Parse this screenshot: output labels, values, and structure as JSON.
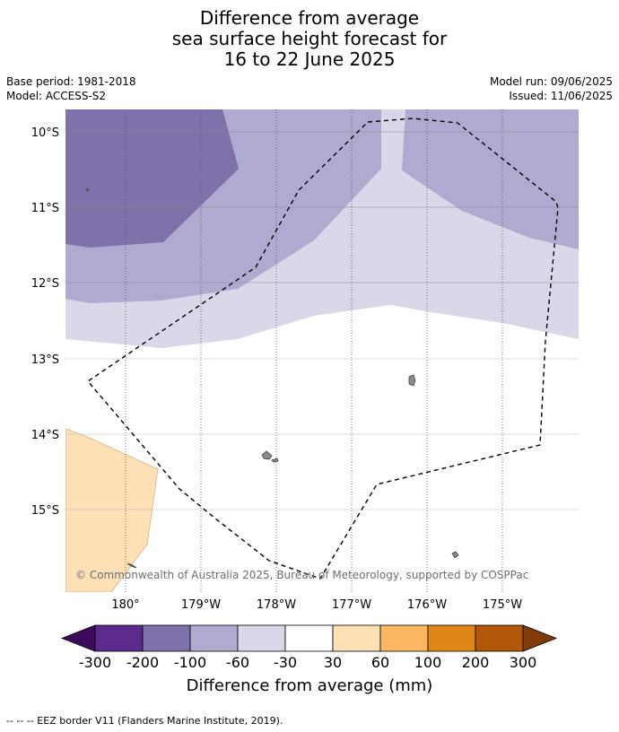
{
  "title": {
    "line1": "Difference from average",
    "line2": "sea surface height forecast for",
    "line3": "16 to 22 June 2025"
  },
  "meta": {
    "base_period": "Base period: 1981-2018",
    "model": "Model: ACCESS-S2",
    "model_run": "Model run: 09/06/2025",
    "issued": "Issued: 11/06/2025"
  },
  "map": {
    "lat_labels": [
      "10°S",
      "11°S",
      "12°S",
      "13°S",
      "14°S",
      "15°S"
    ],
    "lon_labels": [
      "180°",
      "179°W",
      "178°W",
      "177°W",
      "176°W",
      "175°W"
    ],
    "copyright": "© Commonwealth of Australia 2025, Bureau of Meteorology, supported by COSPPac",
    "colors": {
      "ocean_neutral": "#ffffff",
      "minus_300_200": "#5b2a8c",
      "minus_200_100": "#7f71aa",
      "minus_100_60": "#b0a9d0",
      "minus_60_30": "#d8d8e9",
      "plus_30_60": "#fde0b6",
      "land": "#8a8a8a"
    }
  },
  "colorbar": {
    "tick_labels": [
      "-300",
      "-200",
      "-100",
      "-60",
      "-30",
      "30",
      "60",
      "100",
      "200",
      "300"
    ],
    "colors": [
      "#5b2a8c",
      "#7f71aa",
      "#b0a9d0",
      "#d8d8e9",
      "#ffffff",
      "#fde0b6",
      "#fbb862",
      "#e08518",
      "#b15708"
    ],
    "extend_low_color": "#3d0a5a",
    "extend_high_color": "#7f3b08",
    "title": "Difference from average (mm)"
  },
  "legend": {
    "eez_text": "--  --  -- EEZ border V11 (Flanders Marine Institute, 2019)."
  }
}
